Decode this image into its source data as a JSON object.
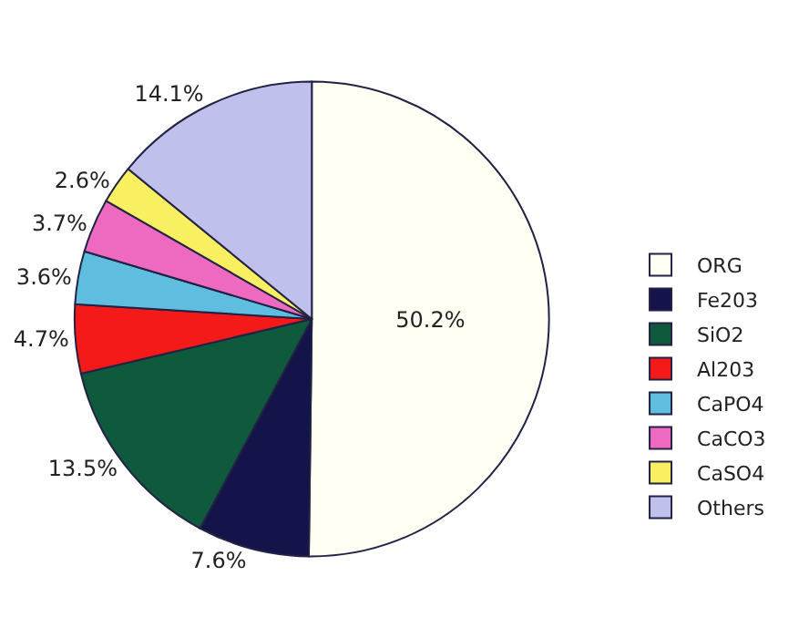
{
  "chart_data": {
    "type": "pie",
    "categories": [
      "ORG",
      "Fe203",
      "SiO2",
      "Al203",
      "CaPO4",
      "CaCO3",
      "CaSO4",
      "Others"
    ],
    "values": [
      50.2,
      7.6,
      13.5,
      4.7,
      3.6,
      3.7,
      2.6,
      14.1
    ],
    "value_labels": [
      "50.2%",
      "7.6%",
      "13.5%",
      "4.7%",
      "3.6%",
      "3.7%",
      "2.6%",
      "14.1%"
    ],
    "colors": [
      "#fffff4",
      "#14144a",
      "#0f5a3c",
      "#f41a1a",
      "#5fbde0",
      "#ee6ac0",
      "#f8f060",
      "#c0c0ec"
    ],
    "legend": "right"
  }
}
